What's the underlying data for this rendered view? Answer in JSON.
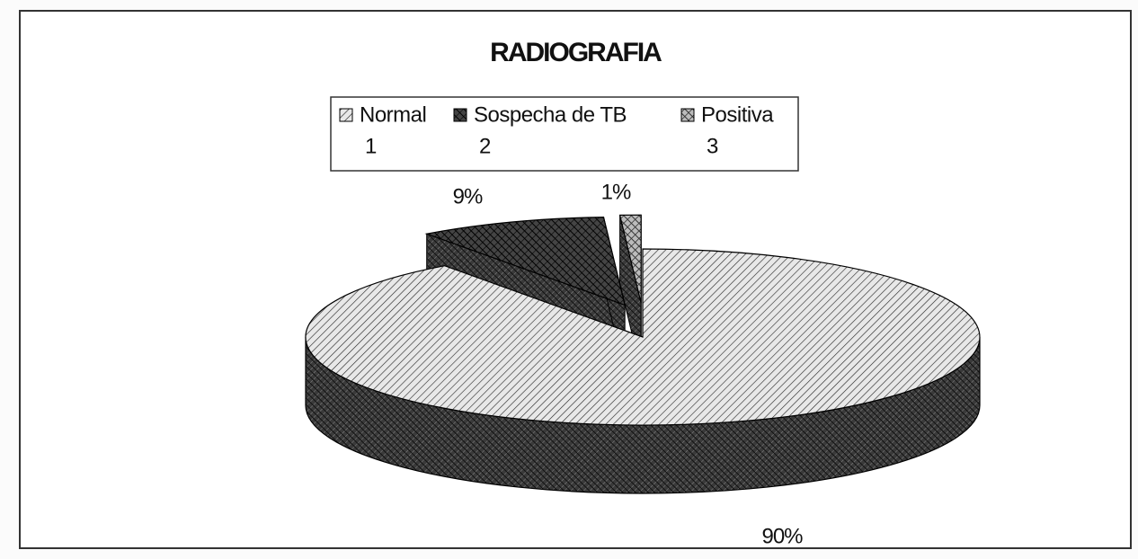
{
  "chart_data": {
    "type": "pie",
    "title": "RADIOGRAFIA",
    "categories": [
      "Normal",
      "Sospecha de TB",
      "Positiva"
    ],
    "category_codes": [
      1,
      2,
      3
    ],
    "values": [
      90,
      9,
      1
    ],
    "value_labels": [
      "90%",
      "9%",
      "1%"
    ],
    "colors": [
      "#e8e8e8",
      "#444444",
      "#bbbbbb"
    ],
    "exploded": [
      false,
      true,
      true
    ],
    "legend": "top"
  }
}
